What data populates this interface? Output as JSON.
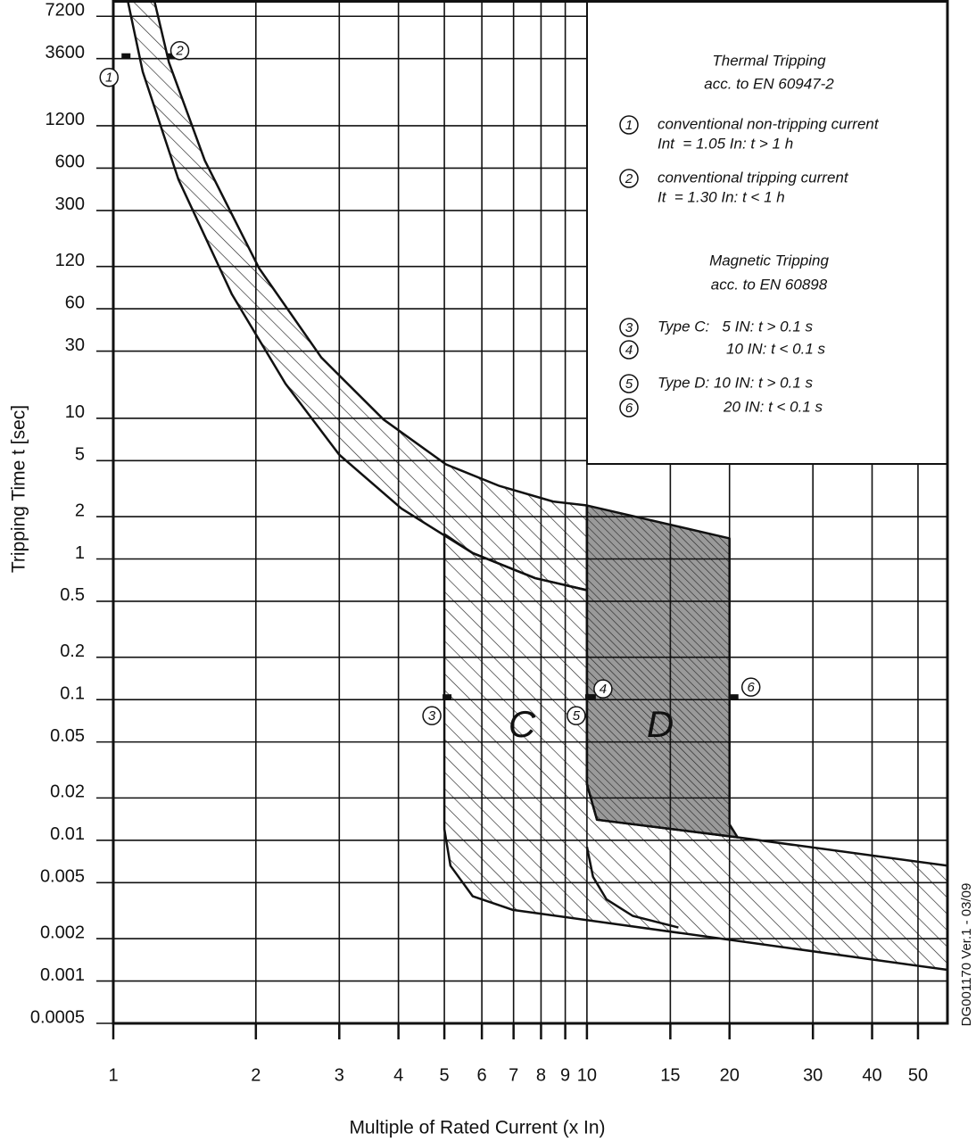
{
  "chart_data": {
    "type": "tripping-curve",
    "x_label": "Multiple of Rated Current (x In)",
    "y_label": "Tripping Time t [sec]",
    "side_note": "DG001170 Ver.1 - 03/09",
    "log_x": true,
    "log_y": true,
    "grid": true,
    "xlim": [
      1,
      57.7
    ],
    "ylim": [
      0.0005,
      9400
    ],
    "xticks": [
      1,
      2,
      3,
      4,
      5,
      6,
      7,
      8,
      9,
      10,
      15,
      20,
      30,
      40,
      50
    ],
    "yticks": [
      7200,
      3600,
      1200,
      600,
      300,
      120,
      60,
      30,
      10,
      5,
      2,
      1,
      0.5,
      0.2,
      0.1,
      0.05,
      0.02,
      0.01,
      0.005,
      0.002,
      0.001,
      0.0005
    ],
    "regions": [
      {
        "fill": "hatch",
        "x": [
          1.072,
          1.154,
          1.372,
          1.78,
          2.31,
          3.0,
          4.06,
          5.74,
          7.78,
          10,
          10,
          8.48,
          6.54,
          5.04,
          3.72,
          2.75,
          2.03,
          1.56,
          1.31,
          1.22
        ],
        "y": [
          9400,
          2900,
          500,
          76,
          17.6,
          5.5,
          2.28,
          1.1,
          0.73,
          0.6,
          2.4,
          2.56,
          3.3,
          4.7,
          9.8,
          27,
          117,
          680,
          3400,
          9400
        ]
      },
      {
        "fill": "hatch",
        "label": "C",
        "x": [
          5,
          5.74,
          7.78,
          10,
          10,
          10.5,
          20.8,
          57.7,
          57.7,
          6.98,
          5.74,
          5.15,
          5
        ],
        "y": [
          1.5,
          1.1,
          0.73,
          0.6,
          0.025,
          0.014,
          0.0105,
          0.0066,
          0.0012,
          0.0032,
          0.004,
          0.0066,
          0.012
        ]
      },
      {
        "fill": "dense-hatch",
        "label": "D",
        "x": [
          10,
          20,
          20,
          20.8,
          10.5,
          10
        ],
        "y": [
          2.4,
          1.4,
          0.013,
          0.0105,
          0.014,
          0.025
        ]
      }
    ],
    "lines": [
      {
        "x": [
          10,
          10.3,
          11,
          12.5,
          15.6
        ],
        "y": [
          0.009,
          0.0055,
          0.0038,
          0.0029,
          0.0024
        ]
      }
    ],
    "markers": [
      {
        "label": "1",
        "x": 1.05,
        "y": 3600
      },
      {
        "label": "2",
        "x": 1.3,
        "y": 3600
      },
      {
        "label": "3",
        "x": 5,
        "y": 0.1
      },
      {
        "label": "4",
        "x": 10,
        "y": 0.1
      },
      {
        "label": "5",
        "x": 10,
        "y": 0.1
      },
      {
        "label": "6",
        "x": 20,
        "y": 0.1
      }
    ],
    "headings": [
      [
        "Thermal Tripping",
        "acc. to EN 60947-2"
      ],
      [
        "Magnetic Tripping",
        "acc. to EN 60898"
      ]
    ],
    "notes": [
      {
        "marker": "1",
        "text": [
          "conventional non-tripping current",
          "Int  = 1.05 In: t > 1 h"
        ]
      },
      {
        "marker": "2",
        "text": [
          "conventional tripping current",
          "It  = 1.30 In: t < 1 h"
        ]
      },
      {
        "marker": "3",
        "text": [
          "Type C:   5 IN: t > 0.1 s"
        ]
      },
      {
        "marker": "4",
        "text": [
          "10 IN: t < 0.1 s"
        ]
      },
      {
        "marker": "5",
        "text": [
          "Type D: 10 IN: t > 0.1 s"
        ]
      },
      {
        "marker": "6",
        "text": [
          "20 IN: t < 0.1 s"
        ]
      }
    ]
  }
}
